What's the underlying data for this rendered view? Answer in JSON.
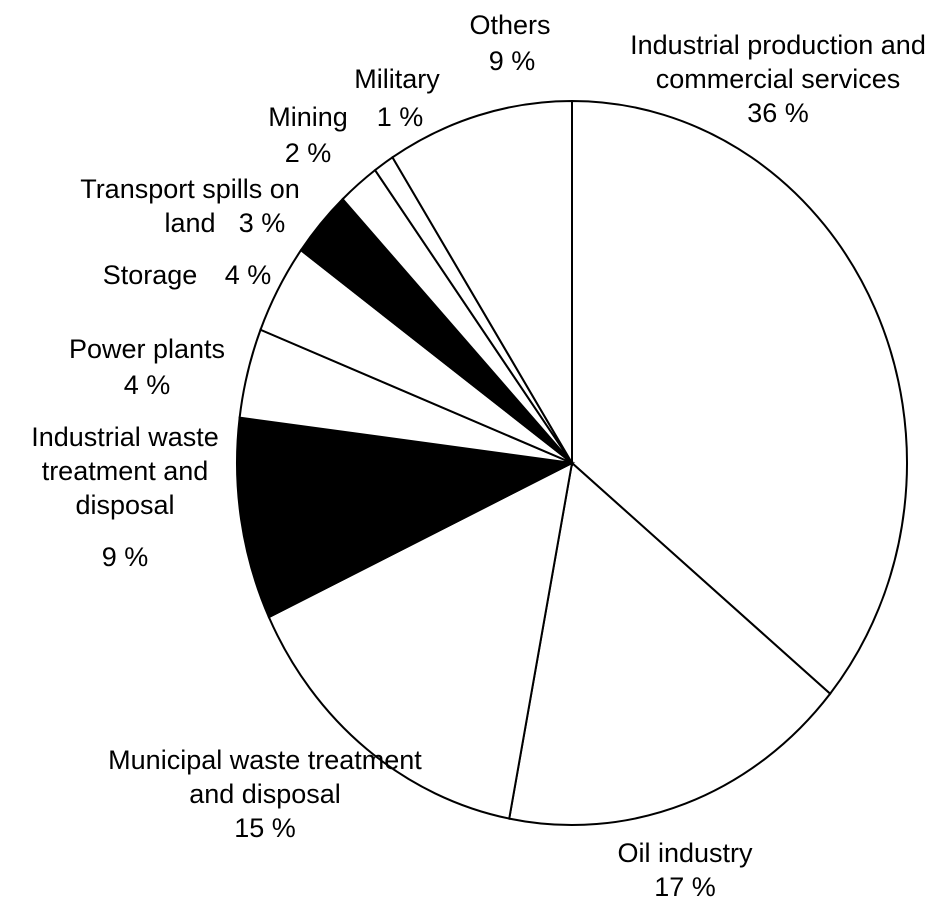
{
  "chart_data": {
    "type": "pie",
    "categories": [
      "Industrial production and commercial services",
      "Oil industry",
      "Municipal waste treatment and disposal",
      "Industrial waste treatment and disposal",
      "Power plants",
      "Storage",
      "Transport spills on land",
      "Mining",
      "Military",
      "Others"
    ],
    "values": [
      36,
      17,
      15,
      9,
      4,
      4,
      3,
      2,
      1,
      9
    ],
    "value_labels": [
      "36 %",
      "17 %",
      "15 %",
      "9 %",
      "4 %",
      "4 %",
      "3 %",
      "2 %",
      "1 %",
      "9 %"
    ],
    "colors": [
      "#ffffff",
      "#ffffff",
      "#ffffff",
      "#000000",
      "#ffffff",
      "#ffffff",
      "#000000",
      "#ffffff",
      "#ffffff",
      "#ffffff"
    ]
  }
}
